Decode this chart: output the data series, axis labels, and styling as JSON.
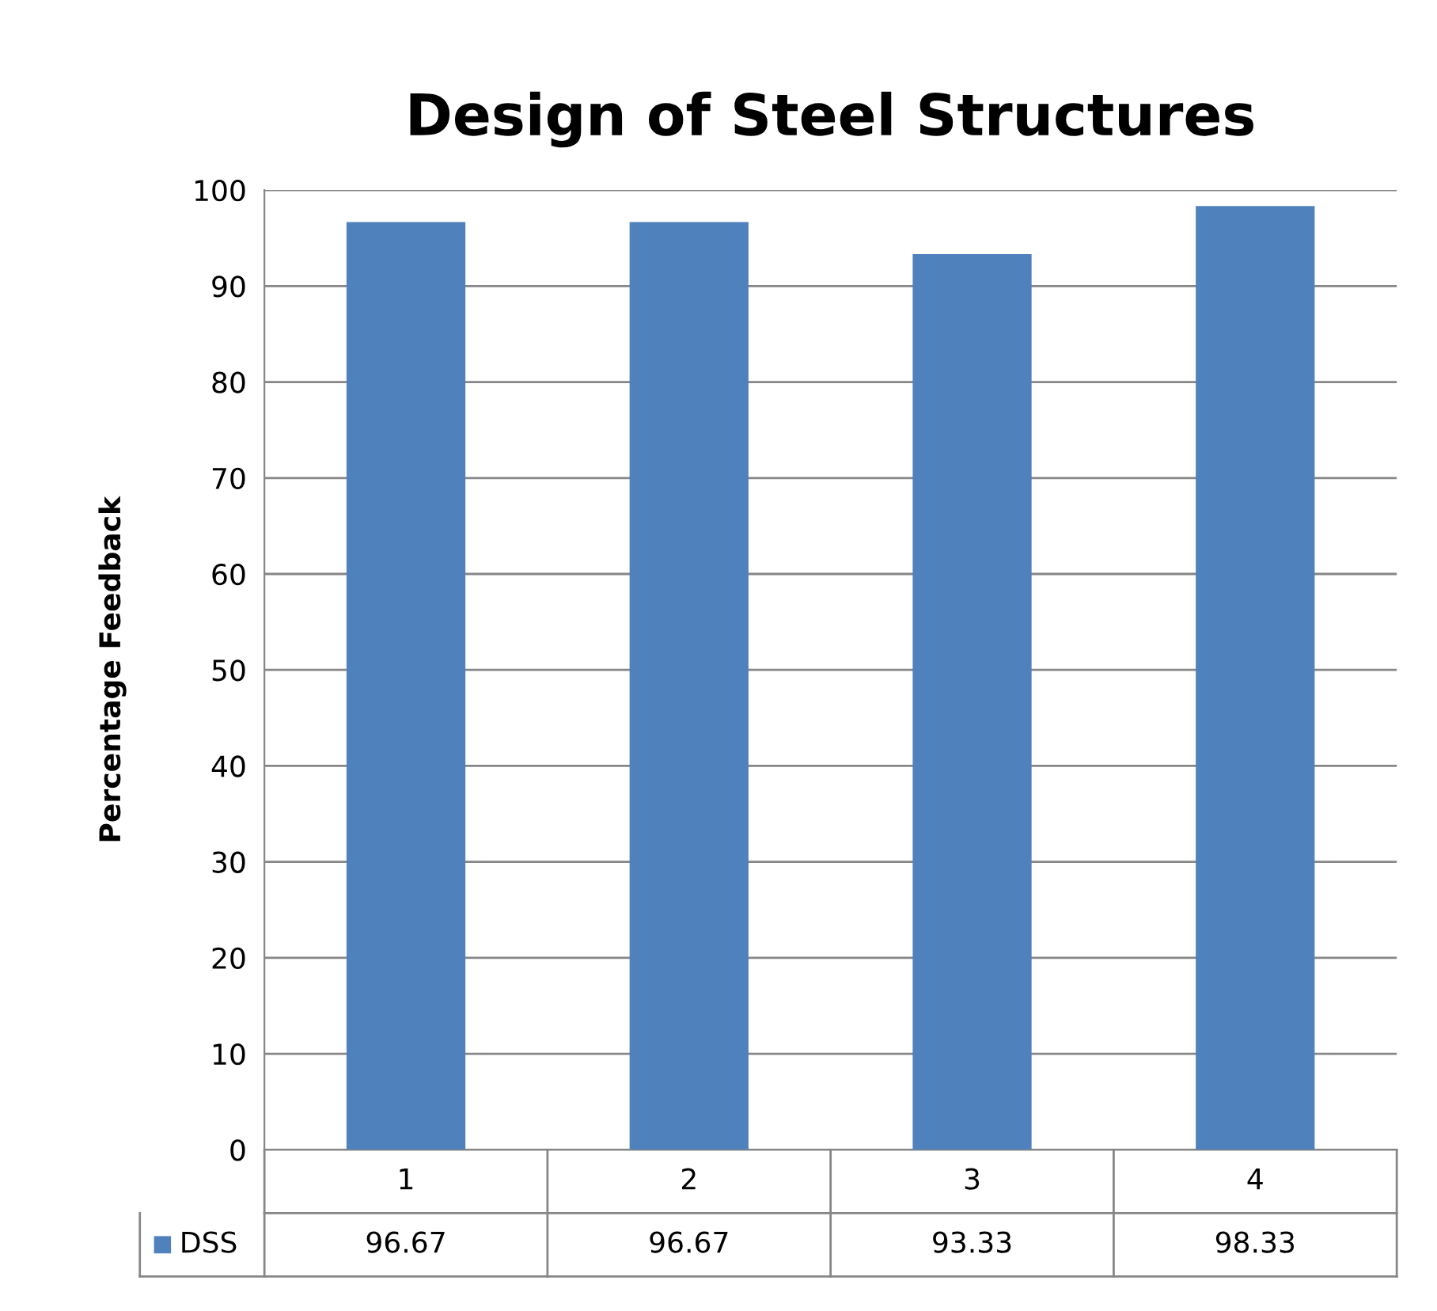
{
  "chart_data": {
    "type": "bar",
    "title": "Design of Steel Structures",
    "ylabel": "Percentage Feedback",
    "categories": [
      "1",
      "2",
      "3",
      "4"
    ],
    "series": [
      {
        "name": "DSS",
        "color": "#4f81bd",
        "values": [
          96.67,
          96.67,
          93.33,
          98.33
        ]
      }
    ],
    "ylim": [
      0,
      100
    ],
    "yticks": [
      0,
      10,
      20,
      30,
      40,
      50,
      60,
      70,
      80,
      90,
      100
    ],
    "grid": "y",
    "legend": "bottom",
    "data_labels": true
  }
}
